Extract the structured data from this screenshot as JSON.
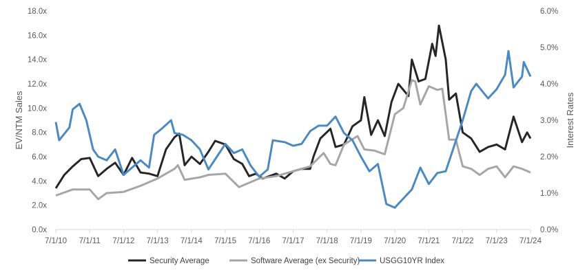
{
  "chart_data": {
    "type": "line",
    "title": "",
    "xlabel": "",
    "ylabel": "EV/NTM Sales",
    "y2label": "Interest Rates",
    "ylim": [
      0,
      18
    ],
    "y2lim": [
      0,
      6
    ],
    "xlim": [
      2010.5,
      2024.5
    ],
    "grid": false,
    "legend": "bottom",
    "x_ticks": [
      "7/1/10",
      "7/1/11",
      "7/1/12",
      "7/1/13",
      "7/1/14",
      "7/1/15",
      "7/1/16",
      "7/1/17",
      "7/1/18",
      "7/1/19",
      "7/1/20",
      "7/1/21",
      "7/1/22",
      "7/1/23",
      "7/1/24"
    ],
    "y_ticks": [
      "0.0x",
      "2.0x",
      "4.0x",
      "6.0x",
      "8.0x",
      "10.0x",
      "12.0x",
      "14.0x",
      "16.0x",
      "18.0x"
    ],
    "y2_ticks": [
      "0.0%",
      "1.0%",
      "2.0%",
      "3.0%",
      "4.0%",
      "5.0%",
      "6.0%"
    ],
    "series": [
      {
        "name": "Security Average",
        "axis": "left",
        "color": "#262626",
        "x": [
          2010.5,
          2010.75,
          2011.0,
          2011.25,
          2011.5,
          2011.75,
          2012.0,
          2012.25,
          2012.5,
          2012.75,
          2013.0,
          2013.25,
          2013.5,
          2013.75,
          2014.0,
          2014.14,
          2014.3,
          2014.5,
          2014.75,
          2015.0,
          2015.2,
          2015.5,
          2015.75,
          2016.0,
          2016.2,
          2016.4,
          2016.6,
          2017.0,
          2017.25,
          2017.5,
          2017.75,
          2018.0,
          2018.1,
          2018.3,
          2018.6,
          2018.75,
          2019.0,
          2019.25,
          2019.5,
          2019.6,
          2019.8,
          2020.0,
          2020.2,
          2020.4,
          2020.6,
          2020.9,
          2021.0,
          2021.2,
          2021.4,
          2021.6,
          2021.7,
          2021.8,
          2022.0,
          2022.1,
          2022.3,
          2022.5,
          2022.75,
          2023.0,
          2023.25,
          2023.5,
          2023.75,
          2024.0,
          2024.25,
          2024.4,
          2024.5
        ],
        "values": [
          3.4,
          4.5,
          5.2,
          5.8,
          5.9,
          4.4,
          5.0,
          5.5,
          4.5,
          5.9,
          4.7,
          4.6,
          4.4,
          6.6,
          7.6,
          7.9,
          5.3,
          6.0,
          5.4,
          6.4,
          7.3,
          7.0,
          5.8,
          5.4,
          4.4,
          4.6,
          4.2,
          4.6,
          4.2,
          4.8,
          5.0,
          5.0,
          6.0,
          7.5,
          8.3,
          6.8,
          7.0,
          8.5,
          9.0,
          10.9,
          7.8,
          9.0,
          7.7,
          10.5,
          12.0,
          11.0,
          14.0,
          12.2,
          12.4,
          15.3,
          14.3,
          16.8,
          14.0,
          10.7,
          11.2,
          8.0,
          7.5,
          6.4,
          6.8,
          7.0,
          6.6,
          9.3,
          7.2,
          8.0,
          7.5
        ]
      },
      {
        "name": "Software Average (ex Security)",
        "axis": "left",
        "color": "#a6a6a6",
        "x": [
          2010.5,
          2011.0,
          2011.5,
          2011.75,
          2012.0,
          2012.5,
          2013.0,
          2013.5,
          2014.0,
          2014.1,
          2014.3,
          2014.75,
          2015.0,
          2015.5,
          2015.9,
          2016.5,
          2017.0,
          2017.5,
          2018.0,
          2018.4,
          2018.6,
          2018.75,
          2019.0,
          2019.4,
          2019.6,
          2019.9,
          2020.2,
          2020.5,
          2020.75,
          2021.0,
          2021.1,
          2021.25,
          2021.5,
          2021.75,
          2021.9,
          2022.1,
          2022.3,
          2022.5,
          2022.75,
          2023.0,
          2023.25,
          2023.5,
          2023.75,
          2024.0,
          2024.25,
          2024.5
        ],
        "values": [
          2.8,
          3.3,
          3.3,
          2.5,
          3.0,
          3.1,
          3.6,
          4.2,
          5.0,
          5.3,
          4.1,
          4.3,
          4.5,
          4.6,
          3.5,
          4.2,
          4.4,
          4.8,
          5.2,
          6.3,
          5.4,
          5.3,
          7.0,
          7.7,
          6.6,
          6.5,
          6.2,
          9.5,
          10.0,
          12.3,
          12.2,
          10.3,
          11.8,
          11.5,
          11.6,
          7.4,
          7.4,
          5.2,
          5.0,
          4.5,
          5.0,
          5.2,
          4.3,
          5.2,
          5.0,
          4.7
        ]
      },
      {
        "name": "USGG10YR Index",
        "axis": "right",
        "color": "#4a8ac4",
        "x": [
          2010.5,
          2010.6,
          2010.9,
          2011.0,
          2011.2,
          2011.4,
          2011.6,
          2011.75,
          2012.0,
          2012.25,
          2012.5,
          2012.75,
          2013.0,
          2013.25,
          2013.4,
          2013.6,
          2013.9,
          2014.0,
          2014.25,
          2014.5,
          2014.75,
          2015.0,
          2015.25,
          2015.5,
          2015.75,
          2016.0,
          2016.25,
          2016.5,
          2016.75,
          2016.9,
          2017.25,
          2017.5,
          2017.75,
          2018.0,
          2018.25,
          2018.5,
          2018.75,
          2019.0,
          2019.25,
          2019.5,
          2019.75,
          2020.0,
          2020.25,
          2020.5,
          2020.75,
          2021.0,
          2021.25,
          2021.5,
          2021.75,
          2022.0,
          2022.25,
          2022.5,
          2022.75,
          2022.9,
          2023.25,
          2023.5,
          2023.75,
          2023.85,
          2024.0,
          2024.25,
          2024.3,
          2024.5
        ],
        "values": [
          2.95,
          2.45,
          2.8,
          3.3,
          3.45,
          3.0,
          2.2,
          2.0,
          1.9,
          2.2,
          1.5,
          1.7,
          1.9,
          1.7,
          2.6,
          2.75,
          3.0,
          2.65,
          2.6,
          2.45,
          2.2,
          1.65,
          2.0,
          2.35,
          2.1,
          2.2,
          1.75,
          1.45,
          1.65,
          2.45,
          2.4,
          2.3,
          2.35,
          2.7,
          2.85,
          2.85,
          3.1,
          2.65,
          2.45,
          2.0,
          1.6,
          1.8,
          0.7,
          0.6,
          0.85,
          1.1,
          1.7,
          1.25,
          1.55,
          1.6,
          2.3,
          3.0,
          3.8,
          4.0,
          3.6,
          3.85,
          4.25,
          4.9,
          3.9,
          4.2,
          4.6,
          4.2
        ]
      }
    ]
  }
}
